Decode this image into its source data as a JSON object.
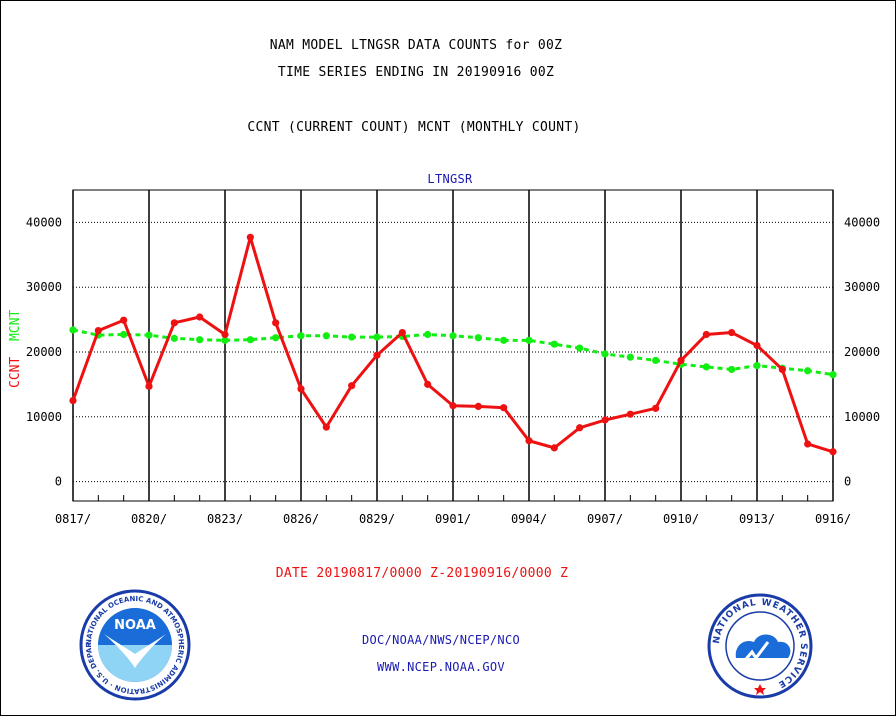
{
  "header": {
    "line1": "NAM MODEL LTNGSR DATA COUNTS for 00Z",
    "line2": "TIME SERIES ENDING IN 20190916 00Z",
    "line3": "CCNT (CURRENT COUNT) MCNT (MONTHLY COUNT)"
  },
  "footer": {
    "date_range": "DATE 20190817/0000 Z-20190916/0000 Z",
    "org_path": "DOC/NOAA/NWS/NCEP/NCO",
    "website": "WWW.NCEP.NOAA.GOV"
  },
  "logos": {
    "noaa_text": "NOAA",
    "noaa_ring_text": "NATIONAL OCEANIC AND ATMOSPHERIC ADMINISTRATION · U.S. DEPARTMENT OF COMMERCE",
    "nws_ring_text": "NATIONAL WEATHER SERVICE"
  },
  "colors": {
    "ccnt": "#ee1111",
    "mcnt": "#11ee11",
    "title_blue": "#1a1ab4"
  },
  "chart_data": {
    "type": "line",
    "title": "LTNGSR",
    "ylabel_ccnt": "CCNT",
    "ylabel_mcnt": "MCNT",
    "ylim": [
      -3000,
      45000
    ],
    "yticks": [
      0,
      10000,
      20000,
      30000,
      40000
    ],
    "ytick_labels": [
      "0",
      "10000",
      "20000",
      "30000",
      "40000"
    ],
    "xlim": [
      0,
      30
    ],
    "xticks": [
      0,
      3,
      6,
      9,
      12,
      15,
      18,
      21,
      24,
      27,
      30
    ],
    "xtick_labels": [
      "0817/",
      "0820/",
      "0823/",
      "0826/",
      "0829/",
      "0901/",
      "0904/",
      "0907/",
      "0910/",
      "0913/",
      "0916/"
    ],
    "grid": true,
    "series": [
      {
        "name": "CCNT",
        "style": "solid",
        "values": [
          12500,
          23300,
          24900,
          14700,
          24500,
          25400,
          22700,
          37700,
          24500,
          14300,
          8400,
          14800,
          19500,
          23000,
          15000,
          11700,
          11600,
          11400,
          6300,
          5200,
          8300,
          9500,
          10400,
          11300,
          18700,
          22700,
          23000,
          21000,
          17300,
          5800,
          4600
        ]
      },
      {
        "name": "MCNT",
        "style": "dashed",
        "values": [
          23400,
          22600,
          22700,
          22600,
          22100,
          21900,
          21800,
          21900,
          22200,
          22500,
          22500,
          22300,
          22300,
          22400,
          22700,
          22500,
          22200,
          21800,
          21800,
          21200,
          20600,
          19700,
          19200,
          18700,
          18100,
          17700,
          17300,
          17900,
          17500,
          17100,
          16500
        ]
      }
    ]
  }
}
